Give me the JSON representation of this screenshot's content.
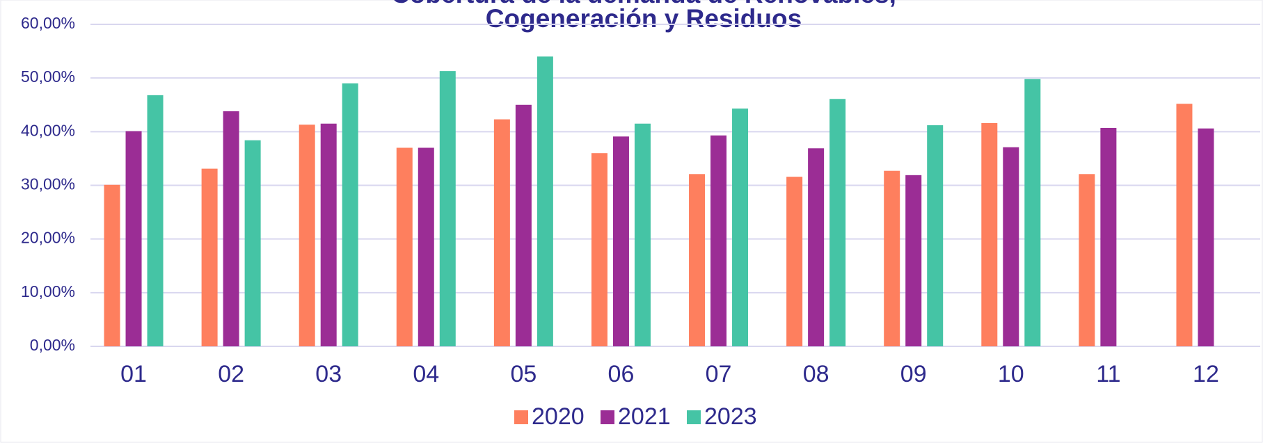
{
  "chart_data": {
    "type": "bar",
    "title": [
      "Cobertura de la demanda de Renovables,",
      "Cogeneración y Residuos"
    ],
    "categories": [
      "01",
      "02",
      "03",
      "04",
      "05",
      "06",
      "07",
      "08",
      "09",
      "10",
      "11",
      "12"
    ],
    "series": [
      {
        "name": "2020",
        "color": "#fe7f5e",
        "values": [
          30.1,
          33.1,
          41.3,
          37.0,
          42.3,
          36.0,
          32.1,
          31.6,
          32.7,
          41.6,
          32.1,
          45.2
        ]
      },
      {
        "name": "2021",
        "color": "#9b2d95",
        "values": [
          40.1,
          43.8,
          41.5,
          37.0,
          45.0,
          39.1,
          39.3,
          36.9,
          31.9,
          37.1,
          40.7,
          40.6
        ]
      },
      {
        "name": "2023",
        "color": "#45c4a5",
        "values": [
          46.8,
          38.4,
          49.0,
          51.3,
          54.0,
          41.5,
          44.3,
          46.1,
          41.2,
          49.8,
          null,
          null
        ]
      }
    ],
    "ylim": [
      0,
      60
    ],
    "yticks": [
      {
        "value": 0,
        "label": "0,00%"
      },
      {
        "value": 10,
        "label": "10,00%"
      },
      {
        "value": 20,
        "label": "20,00%"
      },
      {
        "value": 30,
        "label": "30,00%"
      },
      {
        "value": 40,
        "label": "40,00%"
      },
      {
        "value": 50,
        "label": "50,00%"
      },
      {
        "value": 60,
        "label": "60,00%"
      }
    ],
    "grid": true,
    "legend": "bottom"
  }
}
